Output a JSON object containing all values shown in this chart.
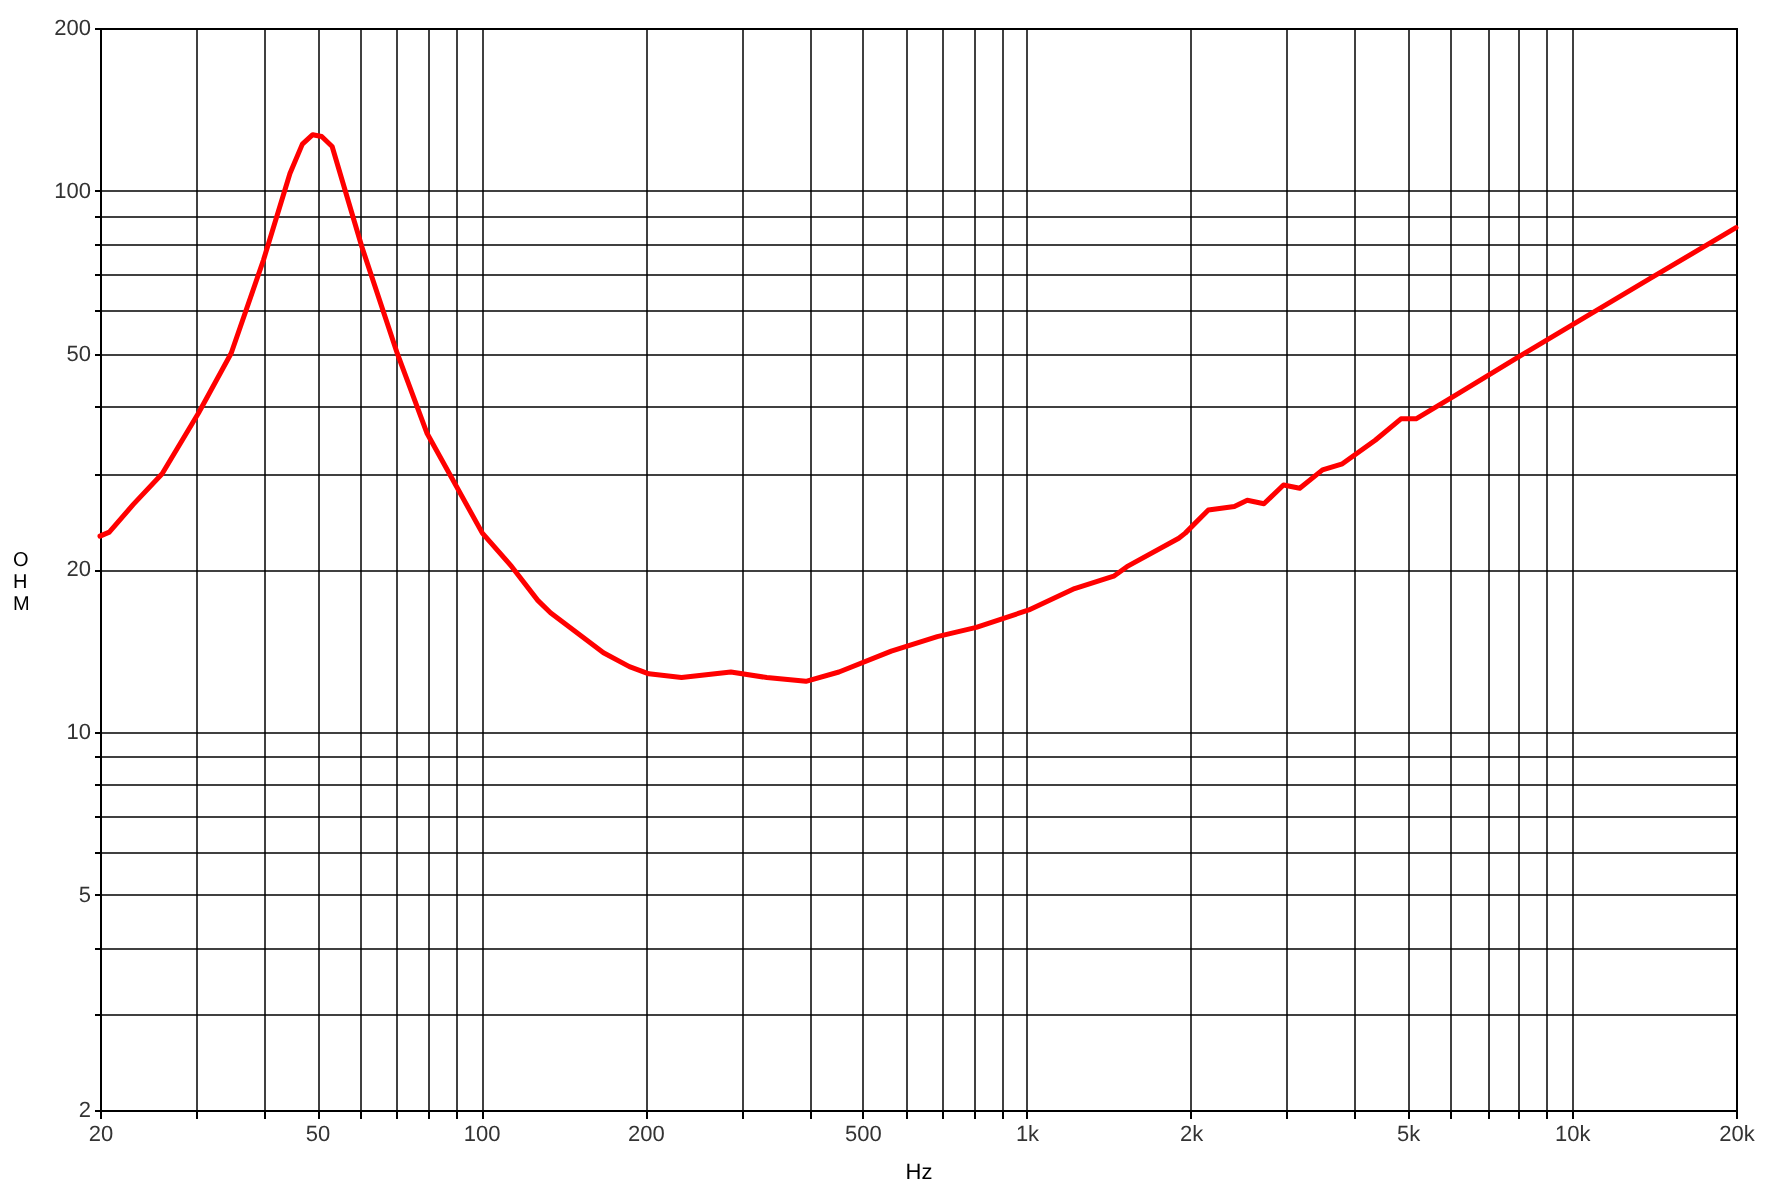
{
  "chart_data": {
    "type": "line",
    "xlabel": "Hz",
    "ylabel": "OHM",
    "log": "xy",
    "grid": true,
    "line_style": "solid",
    "marker": "none",
    "xlim": [
      20,
      20000
    ],
    "ylim": [
      2,
      200
    ],
    "xticks": [
      20,
      {
        "value": 30,
        "label": null
      },
      {
        "value": 40,
        "label": null
      },
      50,
      {
        "value": 60,
        "label": null
      },
      {
        "value": 70,
        "label": null
      },
      {
        "value": 80,
        "label": null
      },
      {
        "value": 90,
        "label": null
      },
      100,
      200,
      {
        "value": 300,
        "label": null
      },
      {
        "value": 400,
        "label": null
      },
      500,
      {
        "value": 600,
        "label": null
      },
      {
        "value": 700,
        "label": null
      },
      {
        "value": 800,
        "label": null
      },
      {
        "value": 900,
        "label": null
      },
      {
        "value": 1000,
        "label": "1k"
      },
      {
        "value": 2000,
        "label": "2k"
      },
      {
        "value": 3000,
        "label": null
      },
      {
        "value": 4000,
        "label": null
      },
      {
        "value": 5000,
        "label": "5k"
      },
      {
        "value": 6000,
        "label": null
      },
      {
        "value": 7000,
        "label": null
      },
      {
        "value": 8000,
        "label": null
      },
      {
        "value": 9000,
        "label": null
      },
      {
        "value": 10000,
        "label": "10k"
      },
      {
        "value": 20000,
        "label": "20k"
      }
    ],
    "yticks": [
      2,
      {
        "value": 3,
        "label": null
      },
      {
        "value": 4,
        "label": null
      },
      5,
      {
        "value": 6,
        "label": null
      },
      {
        "value": 7,
        "label": null
      },
      {
        "value": 8,
        "label": null
      },
      {
        "value": 9,
        "label": null
      },
      10,
      20,
      {
        "value": 30,
        "label": null
      },
      {
        "value": 40,
        "label": null
      },
      50,
      {
        "value": 60,
        "label": null
      },
      {
        "value": 70,
        "label": null
      },
      {
        "value": 80,
        "label": null
      },
      {
        "value": 90,
        "label": null
      },
      100,
      200
    ],
    "series": [
      {
        "color": "#ff0000",
        "x": [
          20,
          20.8,
          23,
          26,
          30.3,
          34.8,
          39.9,
          44.6,
          47,
          49.1,
          51,
          53.3,
          60.4,
          70.2,
          79.6,
          100.5,
          113.8,
          127,
          134,
          167.6,
          187,
          203,
          233,
          287,
          334,
          394,
          453,
          565,
          686,
          809,
          1010,
          1225,
          1445,
          1528,
          1902,
          1955,
          2155,
          2405,
          2540,
          2725,
          2960,
          3170,
          3490,
          3795,
          4360,
          4860,
          5180,
          6070,
          8000,
          9980,
          13900,
          20000
        ],
        "values": [
          23.0,
          23.4,
          26.3,
          30.0,
          38.8,
          50.1,
          74.6,
          107.7,
          122,
          127,
          126,
          120.8,
          78.9,
          50,
          35.6,
          23.3,
          20.2,
          17.5,
          16.6,
          14.0,
          13.2,
          12.8,
          12.6,
          12.9,
          12.6,
          12.4,
          12.9,
          14.1,
          15.0,
          15.6,
          16.8,
          18.4,
          19.4,
          20.2,
          22.8,
          23.3,
          25.7,
          26.1,
          26.8,
          26.4,
          28.6,
          28.2,
          30.5,
          31.3,
          34.6,
          37.9,
          37.9,
          41.7,
          49.4,
          56.4,
          68.8,
          85.5
        ]
      }
    ]
  }
}
